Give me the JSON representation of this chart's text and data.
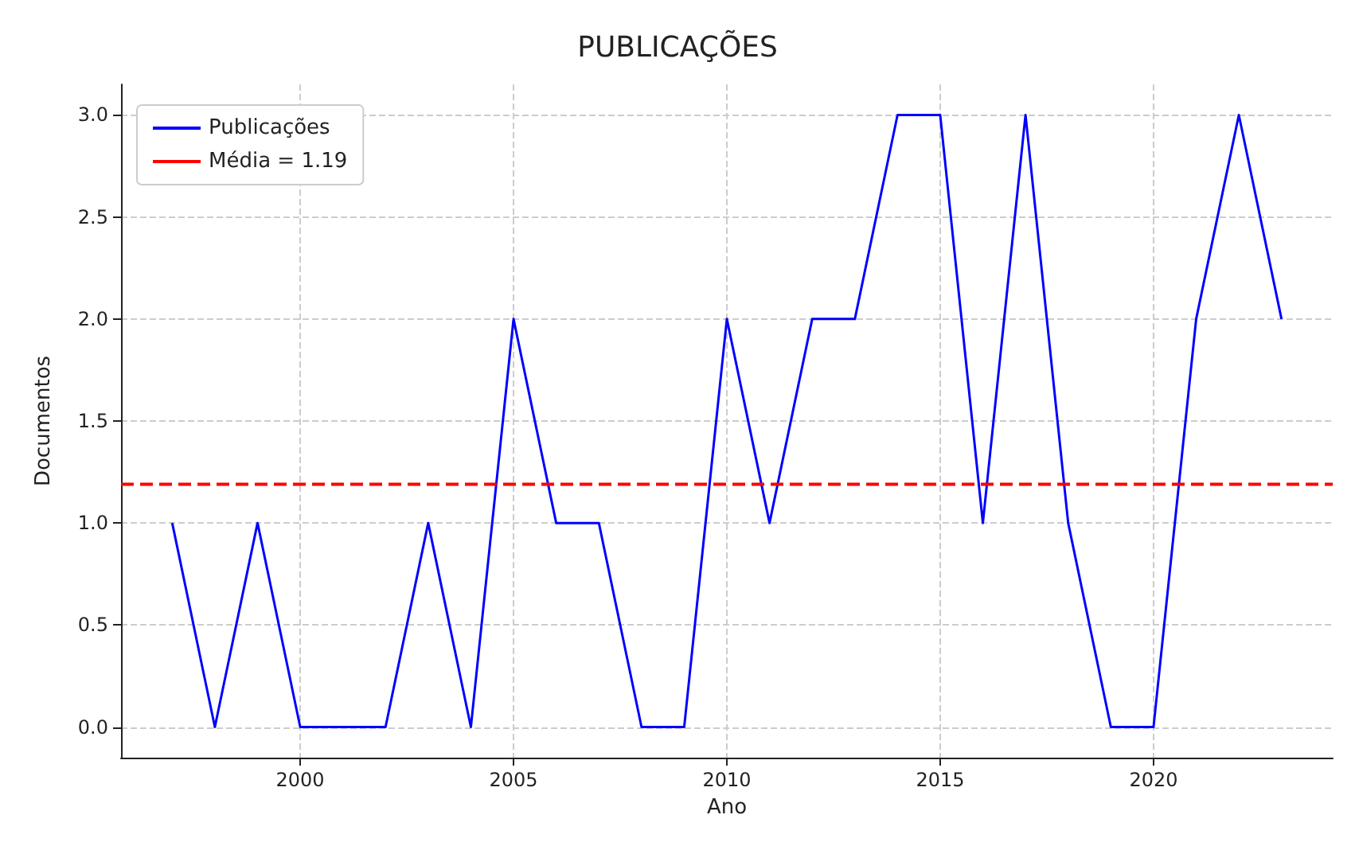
{
  "chart_data": {
    "type": "line",
    "title": "PUBLICAÇÕES",
    "xlabel": "Ano",
    "ylabel": "Documentos",
    "x": [
      1997,
      1998,
      1999,
      2000,
      2001,
      2002,
      2003,
      2004,
      2005,
      2006,
      2007,
      2008,
      2009,
      2010,
      2011,
      2012,
      2013,
      2014,
      2015,
      2016,
      2017,
      2018,
      2019,
      2020,
      2021,
      2022,
      2023
    ],
    "series": [
      {
        "name": "Publicações",
        "color": "#0000ff",
        "values": [
          1,
          0,
          1,
          0,
          0,
          0,
          1,
          0,
          2,
          1,
          1,
          0,
          0,
          2,
          1,
          2,
          2,
          3,
          3,
          1,
          3,
          1,
          0,
          0,
          2,
          3,
          2
        ]
      }
    ],
    "xlim": [
      1995.8,
      2024.2
    ],
    "ylim": [
      -0.15,
      3.15
    ],
    "xticks": [
      2000,
      2005,
      2010,
      2015,
      2020
    ],
    "yticks": [
      {
        "value": 0,
        "label": "0.0"
      },
      {
        "value": 0.5,
        "label": "0.5"
      },
      {
        "value": 1,
        "label": "1.0"
      },
      {
        "value": 1.5,
        "label": "1.5"
      },
      {
        "value": 2,
        "label": "2.0"
      },
      {
        "value": 2.5,
        "label": "2.5"
      },
      {
        "value": 3,
        "label": "3.0"
      }
    ],
    "ref_lines": [
      {
        "axis": "y",
        "value": 1.19,
        "label": "Média = 1.19",
        "color": "#ff0000",
        "line_style": "dashed"
      }
    ],
    "grid": true,
    "legend": "top left",
    "line_style": "solid",
    "marker": "none"
  }
}
